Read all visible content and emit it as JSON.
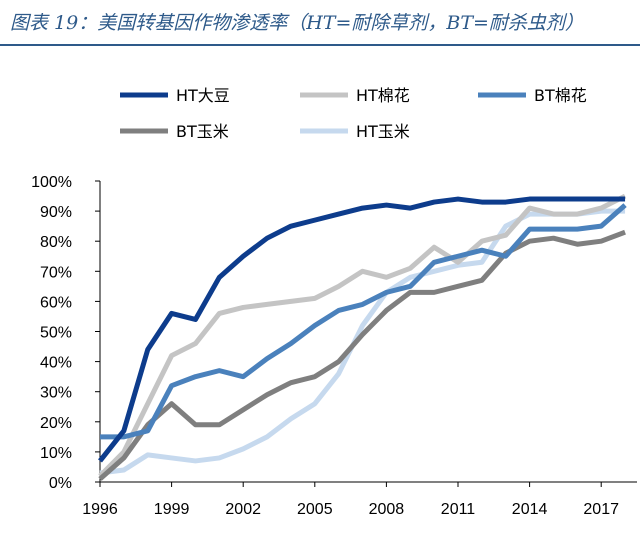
{
  "title": "图表 19：美国转基因作物渗透率（HT=耐除草剂，BT=耐杀虫剂）",
  "chart_data": {
    "type": "line",
    "title": "图表 19：美国转基因作物渗透率（HT=耐除草剂，BT=耐杀虫剂）",
    "xlabel": "",
    "ylabel": "",
    "x": [
      1996,
      1997,
      1998,
      1999,
      2000,
      2001,
      2002,
      2003,
      2004,
      2005,
      2006,
      2007,
      2008,
      2009,
      2010,
      2011,
      2012,
      2013,
      2014,
      2015,
      2016,
      2017,
      2018
    ],
    "xlim": [
      1996,
      2018.5
    ],
    "ylim": [
      0,
      100
    ],
    "x_ticks": [
      1996,
      1999,
      2002,
      2005,
      2008,
      2011,
      2014,
      2017
    ],
    "x_tick_labels": [
      "1996",
      "1999",
      "2002",
      "2005",
      "2008",
      "2011",
      "2014",
      "2017"
    ],
    "y_ticks": [
      0,
      10,
      20,
      30,
      40,
      50,
      60,
      70,
      80,
      90,
      100
    ],
    "y_tick_labels": [
      "0%",
      "10%",
      "20%",
      "30%",
      "40%",
      "50%",
      "60%",
      "70%",
      "80%",
      "90%",
      "100%"
    ],
    "grid": false,
    "legend_position": "top",
    "series": [
      {
        "name": "HT大豆",
        "color": "#0d3c8c",
        "values": [
          7,
          17,
          44,
          56,
          54,
          68,
          75,
          81,
          85,
          87,
          89,
          91,
          92,
          91,
          93,
          94,
          93,
          93,
          94,
          94,
          94,
          94,
          94
        ]
      },
      {
        "name": "HT棉花",
        "color": "#c4c4c4",
        "values": [
          2,
          10,
          26,
          42,
          46,
          56,
          58,
          59,
          60,
          61,
          65,
          70,
          68,
          71,
          78,
          73,
          80,
          82,
          91,
          89,
          89,
          91,
          95
        ]
      },
      {
        "name": "BT棉花",
        "color": "#4a81bc",
        "values": [
          15,
          15,
          17,
          32,
          35,
          37,
          35,
          41,
          46,
          52,
          57,
          59,
          63,
          65,
          73,
          75,
          77,
          75,
          84,
          84,
          84,
          85,
          92
        ]
      },
      {
        "name": "BT玉米",
        "color": "#7f7f7f",
        "values": [
          1,
          8,
          19,
          26,
          19,
          19,
          24,
          29,
          33,
          35,
          40,
          49,
          57,
          63,
          63,
          65,
          67,
          76,
          80,
          81,
          79,
          80,
          83
        ]
      },
      {
        "name": "HT玉米",
        "color": "#c6d9ee",
        "values": [
          3,
          4,
          9,
          8,
          7,
          8,
          11,
          15,
          21,
          26,
          36,
          52,
          63,
          68,
          70,
          72,
          73,
          85,
          89,
          89,
          89,
          90,
          90
        ]
      }
    ]
  }
}
